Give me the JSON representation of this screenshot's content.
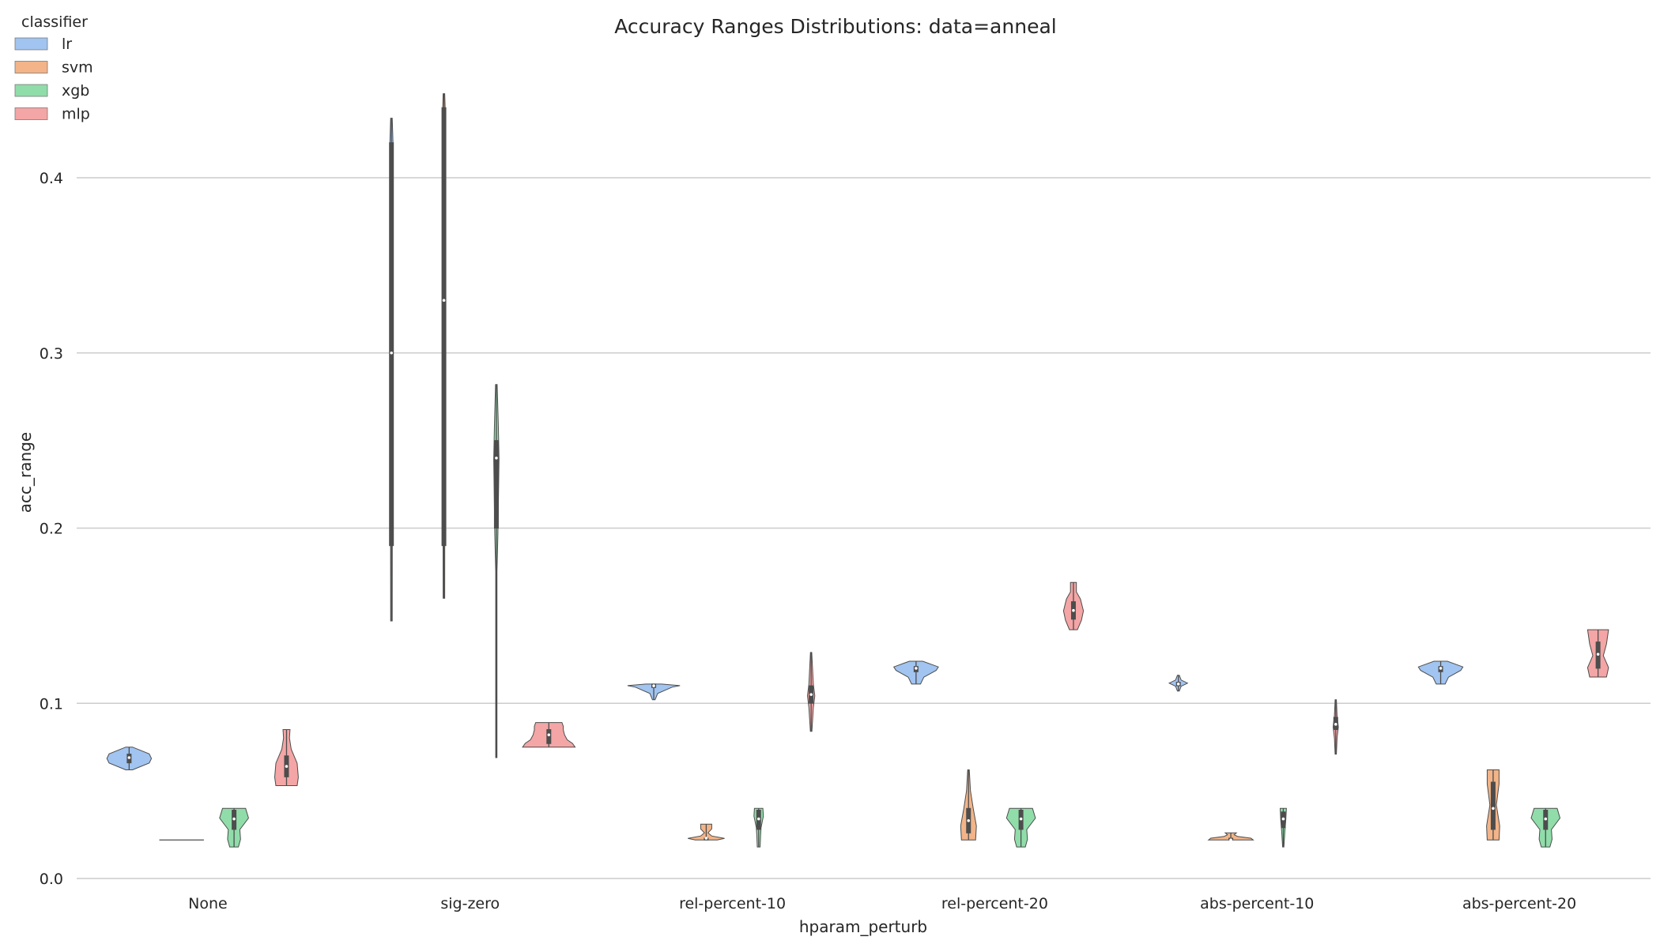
{
  "chart_data": {
    "type": "violin",
    "title": "Accuracy Ranges Distributions: data=anneal",
    "xlabel": "hparam_perturb",
    "ylabel": "acc_range",
    "ylim": [
      -0.005,
      0.45
    ],
    "yticks": [
      0.0,
      0.1,
      0.2,
      0.3,
      0.4
    ],
    "ytick_labels": [
      "0.0",
      "0.1",
      "0.2",
      "0.3",
      "0.4"
    ],
    "grid": "horizontal",
    "legend": {
      "title": "classifier",
      "placement": "top-left"
    },
    "categories": [
      "None",
      "sig-zero",
      "rel-percent-10",
      "rel-percent-20",
      "abs-percent-10",
      "abs-percent-20"
    ],
    "series": [
      {
        "name": "lr",
        "color": "#a1c4f0",
        "violins": [
          {
            "min": 0.062,
            "max": 0.075,
            "median": 0.069,
            "q1": 0.066,
            "q3": 0.071,
            "width": 0.85,
            "profile": [
              [
                0,
                0.15
              ],
              [
                0.3,
                0.9
              ],
              [
                0.5,
                1.0
              ],
              [
                0.7,
                0.9
              ],
              [
                1,
                0.15
              ]
            ]
          },
          {
            "min": 0.147,
            "max": 0.434,
            "median": 0.3,
            "q1": 0.19,
            "q3": 0.42,
            "width": 0.1,
            "profile": [
              [
                0,
                0.3
              ],
              [
                0.5,
                0.4
              ],
              [
                0.95,
                0.6
              ],
              [
                1,
                0.3
              ]
            ]
          },
          {
            "min": 0.102,
            "max": 0.111,
            "median": 0.11,
            "q1": 0.109,
            "q3": 0.111,
            "width": 1.0,
            "profile": [
              [
                0,
                0.05
              ],
              [
                0.4,
                0.15
              ],
              [
                0.8,
                0.7
              ],
              [
                0.9,
                1.0
              ],
              [
                1,
                0.3
              ]
            ]
          },
          {
            "min": 0.111,
            "max": 0.124,
            "median": 0.12,
            "q1": 0.118,
            "q3": 0.121,
            "width": 0.85,
            "profile": [
              [
                0,
                0.2
              ],
              [
                0.3,
                0.35
              ],
              [
                0.6,
                0.9
              ],
              [
                0.75,
                1.0
              ],
              [
                1,
                0.3
              ]
            ]
          },
          {
            "min": 0.107,
            "max": 0.116,
            "median": 0.111,
            "q1": 0.11,
            "q3": 0.112,
            "width": 0.35,
            "profile": [
              [
                0,
                0.1
              ],
              [
                0.3,
                0.3
              ],
              [
                0.5,
                1.0
              ],
              [
                0.7,
                0.3
              ],
              [
                1,
                0.1
              ]
            ]
          },
          {
            "min": 0.111,
            "max": 0.124,
            "median": 0.12,
            "q1": 0.118,
            "q3": 0.121,
            "width": 0.85,
            "profile": [
              [
                0,
                0.2
              ],
              [
                0.3,
                0.35
              ],
              [
                0.6,
                0.9
              ],
              [
                0.75,
                1.0
              ],
              [
                1,
                0.3
              ]
            ]
          }
        ]
      },
      {
        "name": "svm",
        "color": "#f2b488",
        "violins": [
          {
            "min": 0.022,
            "max": 0.022,
            "median": 0.022,
            "q1": 0.022,
            "q3": 0.022,
            "width": 0.85,
            "profile": [
              [
                0,
                1.0
              ],
              [
                1,
                1.0
              ]
            ]
          },
          {
            "min": 0.16,
            "max": 0.448,
            "median": 0.33,
            "q1": 0.19,
            "q3": 0.44,
            "width": 0.1,
            "profile": [
              [
                0,
                0.3
              ],
              [
                0.5,
                0.4
              ],
              [
                0.95,
                0.6
              ],
              [
                1,
                0.3
              ]
            ]
          },
          {
            "min": 0.022,
            "max": 0.031,
            "median": 0.023,
            "q1": 0.022,
            "q3": 0.023,
            "width": 0.7,
            "profile": [
              [
                0,
                0.6
              ],
              [
                0.1,
                1.0
              ],
              [
                0.25,
                0.3
              ],
              [
                0.45,
                0.1
              ],
              [
                0.7,
                0.3
              ],
              [
                1,
                0.3
              ]
            ]
          },
          {
            "min": 0.022,
            "max": 0.062,
            "median": 0.033,
            "q1": 0.026,
            "q3": 0.04,
            "width": 0.3,
            "profile": [
              [
                0,
                0.9
              ],
              [
                0.2,
                1.0
              ],
              [
                0.45,
                0.6
              ],
              [
                0.7,
                0.25
              ],
              [
                1,
                0.1
              ]
            ]
          },
          {
            "min": 0.022,
            "max": 0.026,
            "median": 0.022,
            "q1": 0.022,
            "q3": 0.023,
            "width": 0.85,
            "profile": [
              [
                0,
                1.0
              ],
              [
                0.25,
                0.9
              ],
              [
                0.5,
                0.3
              ],
              [
                0.75,
                0.15
              ],
              [
                1,
                0.25
              ]
            ]
          },
          {
            "min": 0.022,
            "max": 0.062,
            "median": 0.04,
            "q1": 0.028,
            "q3": 0.055,
            "width": 0.25,
            "profile": [
              [
                0,
                0.9
              ],
              [
                0.2,
                1.0
              ],
              [
                0.5,
                0.5
              ],
              [
                0.8,
                0.9
              ],
              [
                1,
                0.9
              ]
            ]
          }
        ]
      },
      {
        "name": "xgb",
        "color": "#90ddaa",
        "violins": [
          {
            "min": 0.018,
            "max": 0.04,
            "median": 0.034,
            "q1": 0.028,
            "q3": 0.039,
            "width": 0.55,
            "profile": [
              [
                0,
                0.3
              ],
              [
                0.2,
                0.45
              ],
              [
                0.45,
                0.4
              ],
              [
                0.75,
                1.0
              ],
              [
                1,
                0.8
              ]
            ]
          },
          {
            "min": 0.069,
            "max": 0.282,
            "median": 0.24,
            "q1": 0.2,
            "q3": 0.25,
            "width": 0.1,
            "profile": [
              [
                0,
                0.1
              ],
              [
                0.5,
                0.2
              ],
              [
                0.6,
                0.6
              ],
              [
                0.8,
                1.0
              ],
              [
                0.9,
                0.7
              ],
              [
                1,
                0.3
              ]
            ]
          },
          {
            "min": 0.018,
            "max": 0.04,
            "median": 0.034,
            "q1": 0.028,
            "q3": 0.039,
            "width": 0.18,
            "profile": [
              [
                0,
                0.3
              ],
              [
                0.3,
                0.4
              ],
              [
                0.5,
                0.5
              ],
              [
                0.8,
                1.0
              ],
              [
                1,
                0.9
              ]
            ]
          },
          {
            "min": 0.018,
            "max": 0.04,
            "median": 0.034,
            "q1": 0.028,
            "q3": 0.039,
            "width": 0.55,
            "profile": [
              [
                0,
                0.3
              ],
              [
                0.2,
                0.45
              ],
              [
                0.45,
                0.4
              ],
              [
                0.75,
                1.0
              ],
              [
                1,
                0.8
              ]
            ]
          },
          {
            "min": 0.018,
            "max": 0.04,
            "median": 0.034,
            "q1": 0.029,
            "q3": 0.038,
            "width": 0.12,
            "profile": [
              [
                0,
                0.2
              ],
              [
                0.4,
                0.5
              ],
              [
                0.7,
                0.8
              ],
              [
                1,
                1.0
              ]
            ]
          },
          {
            "min": 0.018,
            "max": 0.04,
            "median": 0.034,
            "q1": 0.028,
            "q3": 0.039,
            "width": 0.55,
            "profile": [
              [
                0,
                0.3
              ],
              [
                0.2,
                0.45
              ],
              [
                0.45,
                0.4
              ],
              [
                0.75,
                1.0
              ],
              [
                1,
                0.8
              ]
            ]
          }
        ]
      },
      {
        "name": "mlp",
        "color": "#f4a5a5",
        "violins": [
          {
            "min": 0.053,
            "max": 0.085,
            "median": 0.064,
            "q1": 0.058,
            "q3": 0.07,
            "width": 0.45,
            "profile": [
              [
                0,
                0.9
              ],
              [
                0.15,
                1.0
              ],
              [
                0.4,
                0.9
              ],
              [
                0.65,
                0.4
              ],
              [
                0.85,
                0.25
              ],
              [
                1,
                0.3
              ]
            ]
          },
          {
            "min": 0.075,
            "max": 0.089,
            "median": 0.082,
            "q1": 0.077,
            "q3": 0.085,
            "width": 1.0,
            "profile": [
              [
                0,
                1.0
              ],
              [
                0.15,
                0.9
              ],
              [
                0.3,
                0.7
              ],
              [
                0.5,
                0.6
              ],
              [
                0.7,
                0.55
              ],
              [
                0.85,
                0.55
              ],
              [
                1,
                0.5
              ]
            ]
          },
          {
            "min": 0.084,
            "max": 0.129,
            "median": 0.105,
            "q1": 0.1,
            "q3": 0.11,
            "width": 0.14,
            "profile": [
              [
                0,
                0.2
              ],
              [
                0.3,
                0.6
              ],
              [
                0.45,
                1.0
              ],
              [
                0.6,
                0.6
              ],
              [
                1,
                0.15
              ]
            ]
          },
          {
            "min": 0.142,
            "max": 0.169,
            "median": 0.153,
            "q1": 0.148,
            "q3": 0.158,
            "width": 0.38,
            "profile": [
              [
                0,
                0.4
              ],
              [
                0.2,
                0.8
              ],
              [
                0.4,
                1.0
              ],
              [
                0.65,
                0.7
              ],
              [
                0.8,
                0.3
              ],
              [
                1,
                0.3
              ]
            ]
          },
          {
            "min": 0.071,
            "max": 0.102,
            "median": 0.088,
            "q1": 0.085,
            "q3": 0.092,
            "width": 0.1,
            "profile": [
              [
                0,
                0.2
              ],
              [
                0.3,
                0.5
              ],
              [
                0.5,
                1.0
              ],
              [
                0.7,
                0.5
              ],
              [
                1,
                0.2
              ]
            ]
          },
          {
            "min": 0.115,
            "max": 0.142,
            "median": 0.128,
            "q1": 0.12,
            "q3": 0.135,
            "width": 0.4,
            "profile": [
              [
                0,
                0.8
              ],
              [
                0.2,
                1.0
              ],
              [
                0.45,
                0.5
              ],
              [
                0.7,
                0.8
              ],
              [
                1,
                1.0
              ]
            ]
          }
        ]
      }
    ]
  }
}
